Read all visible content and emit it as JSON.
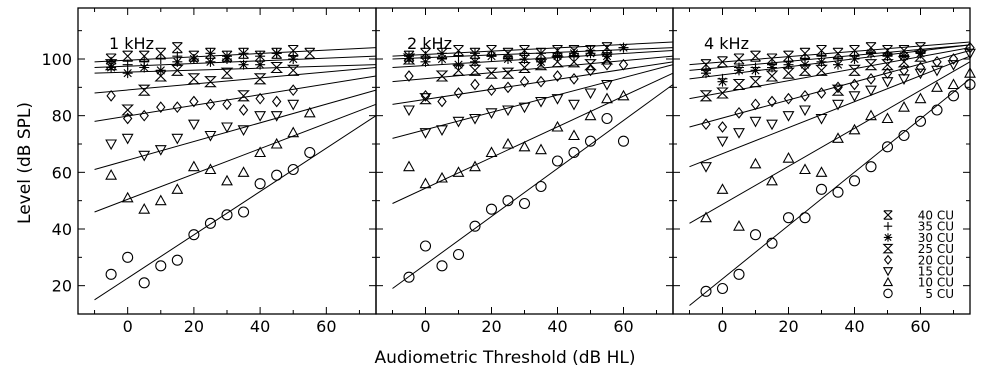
{
  "figure": {
    "ylabel": "Level (dB SPL)",
    "xlabel": "Audiometric Threshold (dB HL)"
  },
  "legend_series": [
    {
      "name": "40 CU",
      "marker": "x-bar"
    },
    {
      "name": "35 CU",
      "marker": "plus"
    },
    {
      "name": "30 CU",
      "marker": "star"
    },
    {
      "name": "25 CU",
      "marker": "hourglass"
    },
    {
      "name": "20 CU",
      "marker": "diamond"
    },
    {
      "name": "15 CU",
      "marker": "tri-down"
    },
    {
      "name": "10 CU",
      "marker": "tri-up"
    },
    {
      "name": "5 CU",
      "marker": "circle"
    }
  ],
  "chart_data": [
    {
      "type": "scatter",
      "title": "1 kHz",
      "xlim": [
        -15,
        75
      ],
      "ylim": [
        10,
        118
      ],
      "xticks": [
        0,
        20,
        40,
        60
      ],
      "yticks": [
        20,
        40,
        60,
        80,
        100
      ],
      "series": [
        {
          "name": "5 CU",
          "marker": "circle",
          "x": [
            -5,
            0,
            5,
            10,
            15,
            20,
            25,
            30,
            35,
            40,
            45,
            50,
            55
          ],
          "y": [
            24,
            30,
            21,
            27,
            29,
            38,
            42,
            45,
            46,
            56,
            59,
            61,
            67
          ],
          "fit": [
            [
              -10,
              15
            ],
            [
              75,
              80
            ]
          ]
        },
        {
          "name": "10 CU",
          "marker": "tri-up",
          "x": [
            -5,
            0,
            5,
            10,
            15,
            20,
            25,
            30,
            35,
            40,
            45,
            50,
            55
          ],
          "y": [
            59,
            51,
            47,
            50,
            54,
            62,
            61,
            57,
            60,
            67,
            70,
            74,
            81
          ],
          "fit": [
            [
              -10,
              46
            ],
            [
              75,
              84
            ]
          ]
        },
        {
          "name": "15 CU",
          "marker": "tri-down",
          "x": [
            -5,
            0,
            5,
            10,
            15,
            20,
            25,
            30,
            35,
            40,
            45,
            50
          ],
          "y": [
            70,
            72,
            66,
            68,
            72,
            77,
            73,
            76,
            75,
            80,
            80,
            84
          ],
          "fit": [
            [
              -10,
              61
            ],
            [
              75,
              89
            ]
          ]
        },
        {
          "name": "20 CU",
          "marker": "diamond",
          "x": [
            -5,
            0,
            5,
            10,
            15,
            20,
            25,
            30,
            35,
            40,
            45,
            50
          ],
          "y": [
            87,
            79,
            80,
            83,
            83,
            85,
            84,
            84,
            82,
            86,
            85,
            89
          ],
          "fit": [
            [
              -10,
              78
            ],
            [
              75,
              94
            ]
          ]
        },
        {
          "name": "25 CU",
          "marker": "hourglass",
          "x": [
            -5,
            0,
            5,
            10,
            15,
            20,
            25,
            30,
            35,
            40,
            45,
            50
          ],
          "y": [
            98,
            82,
            89,
            94,
            96,
            93,
            92,
            95,
            87,
            93,
            97,
            96
          ],
          "fit": [
            [
              -10,
              88
            ],
            [
              75,
              97
            ]
          ]
        },
        {
          "name": "30 CU",
          "marker": "star",
          "x": [
            -5,
            0,
            5,
            10,
            15,
            20,
            25,
            30,
            35,
            40,
            45,
            50
          ],
          "y": [
            97,
            95,
            97,
            96,
            99,
            100,
            99,
            100,
            98,
            98,
            102,
            100
          ],
          "fit": [
            [
              -10,
              95
            ],
            [
              75,
              98
            ]
          ]
        },
        {
          "name": "35 CU",
          "marker": "plus",
          "x": [
            -5,
            0,
            5,
            10,
            15,
            20,
            25,
            30,
            35,
            40,
            45,
            50
          ],
          "y": [
            99,
            98,
            99,
            100,
            101,
            100,
            102,
            101,
            102,
            101,
            102,
            101
          ],
          "fit": [
            [
              -10,
              97
            ],
            [
              75,
              101
            ]
          ]
        },
        {
          "name": "40 CU",
          "marker": "x-bar",
          "x": [
            -5,
            0,
            5,
            10,
            15,
            20,
            25,
            30,
            35,
            40,
            45,
            50,
            55
          ],
          "y": [
            100,
            101,
            101,
            102,
            104,
            101,
            102,
            101,
            102,
            101,
            102,
            103,
            102
          ],
          "fit": [
            [
              -10,
              99
            ],
            [
              75,
              104
            ]
          ]
        }
      ]
    },
    {
      "type": "scatter",
      "title": "2 kHz",
      "xlim": [
        -15,
        75
      ],
      "ylim": [
        10,
        118
      ],
      "xticks": [
        0,
        20,
        40,
        60
      ],
      "yticks": [
        20,
        40,
        60,
        80,
        100
      ],
      "series": [
        {
          "name": "5 CU",
          "marker": "circle",
          "x": [
            -5,
            0,
            5,
            10,
            15,
            20,
            25,
            30,
            35,
            40,
            45,
            50,
            55,
            60
          ],
          "y": [
            23,
            34,
            27,
            31,
            41,
            47,
            50,
            49,
            55,
            64,
            67,
            71,
            79,
            71
          ],
          "fit": [
            [
              -10,
              19
            ],
            [
              75,
              91
            ]
          ]
        },
        {
          "name": "10 CU",
          "marker": "tri-up",
          "x": [
            -5,
            0,
            5,
            10,
            15,
            20,
            25,
            30,
            35,
            40,
            45,
            50,
            55,
            60
          ],
          "y": [
            62,
            56,
            58,
            60,
            62,
            67,
            70,
            69,
            68,
            76,
            73,
            80,
            86,
            87
          ],
          "fit": [
            [
              -10,
              49
            ],
            [
              75,
              95
            ]
          ]
        },
        {
          "name": "15 CU",
          "marker": "tri-down",
          "x": [
            -5,
            0,
            5,
            10,
            15,
            20,
            25,
            30,
            35,
            40,
            45,
            50,
            55
          ],
          "y": [
            82,
            74,
            75,
            78,
            79,
            81,
            82,
            83,
            85,
            86,
            84,
            88,
            91
          ],
          "fit": [
            [
              -10,
              72
            ],
            [
              75,
              98
            ]
          ]
        },
        {
          "name": "20 CU",
          "marker": "diamond",
          "x": [
            -5,
            0,
            5,
            10,
            15,
            20,
            25,
            30,
            35,
            40,
            45,
            50,
            55,
            60
          ],
          "y": [
            94,
            87,
            85,
            88,
            91,
            89,
            90,
            92,
            92,
            94,
            93,
            96,
            98,
            98
          ],
          "fit": [
            [
              -10,
              84
            ],
            [
              75,
              99
            ]
          ]
        },
        {
          "name": "25 CU",
          "marker": "hourglass",
          "x": [
            -5,
            0,
            5,
            10,
            15,
            20,
            25,
            30,
            35,
            40,
            45,
            50,
            55
          ],
          "y": [
            100,
            86,
            94,
            96,
            96,
            95,
            95,
            97,
            98,
            99,
            99,
            98,
            100
          ],
          "fit": [
            [
              -10,
              92
            ],
            [
              75,
              101
            ]
          ]
        },
        {
          "name": "30 CU",
          "marker": "star",
          "x": [
            -5,
            0,
            5,
            10,
            15,
            20,
            25,
            30,
            35,
            40,
            45,
            50,
            55,
            60
          ],
          "y": [
            100,
            99,
            100,
            98,
            99,
            101,
            100,
            100,
            99,
            101,
            102,
            102,
            101,
            104
          ],
          "fit": [
            [
              -10,
              97
            ],
            [
              75,
              103
            ]
          ]
        },
        {
          "name": "35 CU",
          "marker": "plus",
          "x": [
            -5,
            0,
            5,
            10,
            15,
            20,
            25,
            30,
            35,
            40,
            45,
            50,
            55,
            60
          ],
          "y": [
            101,
            101,
            102,
            101,
            102,
            101,
            101,
            102,
            102,
            102,
            101,
            103,
            103,
            104
          ],
          "fit": [
            [
              -10,
              100
            ],
            [
              75,
              104
            ]
          ]
        },
        {
          "name": "40 CU",
          "marker": "x-bar",
          "x": [
            -5,
            0,
            5,
            10,
            15,
            20,
            25,
            30,
            35,
            40,
            45,
            50,
            55
          ],
          "y": [
            101,
            102,
            102,
            103,
            102,
            103,
            102,
            103,
            102,
            103,
            103,
            103,
            104
          ],
          "fit": [
            [
              -10,
              101
            ],
            [
              75,
              106
            ]
          ]
        }
      ]
    },
    {
      "type": "scatter",
      "title": "4 kHz",
      "xlim": [
        -15,
        75
      ],
      "ylim": [
        10,
        118
      ],
      "xticks": [
        0,
        20,
        40,
        60
      ],
      "yticks": [
        20,
        40,
        60,
        80,
        100
      ],
      "series": [
        {
          "name": "5 CU",
          "marker": "circle",
          "x": [
            -5,
            0,
            5,
            10,
            15,
            20,
            25,
            30,
            35,
            40,
            45,
            50,
            55,
            60,
            65,
            70,
            75
          ],
          "y": [
            18,
            19,
            24,
            38,
            35,
            44,
            44,
            54,
            53,
            57,
            62,
            69,
            73,
            78,
            82,
            87,
            91
          ],
          "fit": [
            [
              -10,
              13
            ],
            [
              75,
              93
            ]
          ]
        },
        {
          "name": "10 CU",
          "marker": "tri-up",
          "x": [
            -5,
            0,
            5,
            10,
            15,
            20,
            25,
            30,
            35,
            40,
            45,
            50,
            55,
            60,
            65,
            70,
            75
          ],
          "y": [
            44,
            54,
            41,
            63,
            57,
            65,
            61,
            60,
            72,
            75,
            80,
            79,
            83,
            86,
            90,
            91,
            95
          ],
          "fit": [
            [
              -10,
              42
            ],
            [
              75,
              99
            ]
          ]
        },
        {
          "name": "15 CU",
          "marker": "tri-down",
          "x": [
            -5,
            0,
            5,
            10,
            15,
            20,
            25,
            30,
            35,
            40,
            45,
            50,
            55,
            60,
            65,
            70,
            75
          ],
          "y": [
            62,
            71,
            74,
            78,
            77,
            80,
            82,
            79,
            84,
            87,
            89,
            92,
            93,
            95,
            96,
            98,
            102
          ],
          "fit": [
            [
              -10,
              62
            ],
            [
              75,
              101
            ]
          ]
        },
        {
          "name": "20 CU",
          "marker": "diamond",
          "x": [
            -5,
            0,
            5,
            10,
            15,
            20,
            25,
            30,
            35,
            40,
            45,
            50,
            55,
            60,
            65,
            70,
            75
          ],
          "y": [
            77,
            76,
            81,
            84,
            85,
            86,
            87,
            88,
            90,
            91,
            93,
            95,
            96,
            97,
            99,
            100,
            104
          ],
          "fit": [
            [
              -10,
              76
            ],
            [
              75,
              103
            ]
          ]
        },
        {
          "name": "25 CU",
          "marker": "hourglass",
          "x": [
            -5,
            0,
            5,
            10,
            15,
            20,
            25,
            30,
            35,
            40,
            45,
            50,
            55,
            60
          ],
          "y": [
            87,
            88,
            91,
            92,
            94,
            95,
            96,
            96,
            89,
            96,
            98,
            98,
            99,
            101
          ],
          "fit": [
            [
              -10,
              86
            ],
            [
              75,
              104
            ]
          ]
        },
        {
          "name": "30 CU",
          "marker": "star",
          "x": [
            -5,
            0,
            5,
            10,
            15,
            20,
            25,
            30,
            35,
            40,
            45,
            50,
            55,
            60
          ],
          "y": [
            95,
            92,
            96,
            96,
            97,
            98,
            98,
            99,
            98,
            100,
            102,
            101,
            101,
            102
          ],
          "fit": [
            [
              -10,
              93
            ],
            [
              75,
              105
            ]
          ]
        },
        {
          "name": "35 CU",
          "marker": "plus",
          "x": [
            -5,
            0,
            5,
            10,
            15,
            20,
            25,
            30,
            35,
            40,
            45,
            50,
            55,
            60
          ],
          "y": [
            96,
            93,
            97,
            97,
            98,
            99,
            100,
            101,
            100,
            101,
            102,
            102,
            101,
            102
          ],
          "fit": [
            [
              -10,
              96
            ],
            [
              75,
              105
            ]
          ]
        },
        {
          "name": "40 CU",
          "marker": "x-bar",
          "x": [
            -5,
            0,
            5,
            10,
            15,
            20,
            25,
            30,
            35,
            40,
            45,
            50,
            55,
            60
          ],
          "y": [
            98,
            99,
            100,
            101,
            100,
            101,
            102,
            103,
            102,
            103,
            104,
            103,
            103,
            104
          ],
          "fit": [
            [
              -10,
              98
            ],
            [
              75,
              106
            ]
          ]
        }
      ]
    }
  ]
}
